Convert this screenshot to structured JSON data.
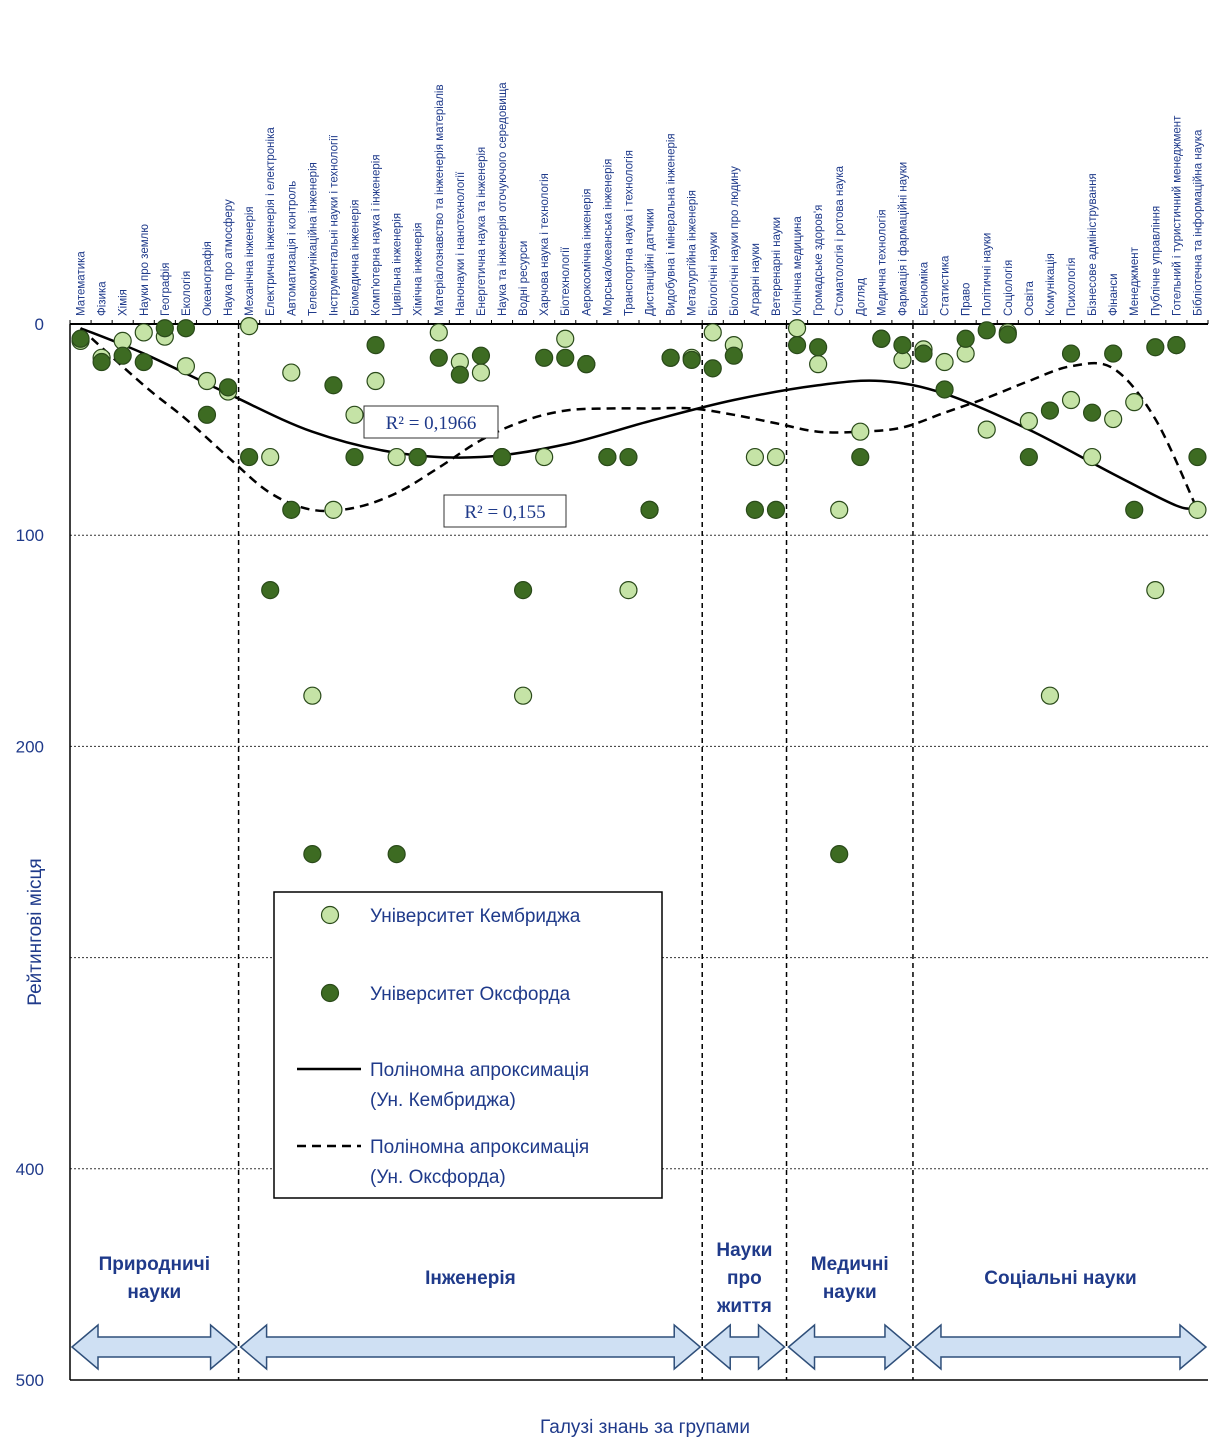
{
  "chart_data": {
    "type": "scatter",
    "title": "",
    "xlabel": "Галузі знань за групами",
    "ylabel": "Рейтингові місця",
    "y_axis_reversed": true,
    "ylim": [
      0,
      500
    ],
    "yticks": [
      0,
      100,
      200,
      300,
      400,
      500
    ],
    "ytick_labels": [
      "0",
      "100",
      "200",
      "",
      "400",
      "500"
    ],
    "grid": "horizontal dotted",
    "categories": [
      "Математика",
      "Фізика",
      "Хімія",
      "Науки про землю",
      "Географія",
      "Екологія",
      "Океанографія",
      "Наука про атмосферу",
      "Механічна інженерія",
      "Електрична інженерія і електроніка",
      "Автоматизація і контроль",
      "Телекомунікаційна інженерія",
      "Інструментальні науки і технології",
      "Біомедична інженерія",
      "Комп'ютерна наука і інженерія",
      "Цивільна інженерія",
      "Хімічна інженерія",
      "Матеріалознавство та інженерія матеріалів",
      "Нанонауки і нанотехнології",
      "Енергетична наука та інженерія",
      "Наука та інженерія оточуючого середовища",
      "Водні ресурси",
      "Харчова наука і технологія",
      "Біотехнології",
      "Аерокосмічна інженерія",
      "Морська/океанська інженерія",
      "Транспортна наука і технологія",
      "Дистанційні датчики",
      "Видобувна і мінеральна інженерія",
      "Металургійна інженерія",
      "Біологічні науки",
      "Біологічні науки про людину",
      "Аграрні науки",
      "Ветеренарні науки",
      "Клінічна медицина",
      "Громадське здоров'я",
      "Стоматологія і ротова наука",
      "Догляд",
      "Медична технологія",
      "Фармація і фармаційні науки",
      "Економіка",
      "Статистика",
      "Право",
      "Політичні науки",
      "Соціологія",
      "Освіта",
      "Комунікація",
      "Психологія",
      "Бізнесове адміністрування",
      "Фінанси",
      "Менеджмент",
      "Публічне управління",
      "Готельний і туристичний менеджмент",
      "Бібліотечна та інформаційна наука"
    ],
    "series": [
      {
        "name": "Університет Кембриджа",
        "color": "#c5e3a6",
        "values": [
          8,
          16,
          8,
          4,
          6,
          20,
          27,
          32,
          1,
          63,
          23,
          176,
          88,
          43,
          27,
          63,
          63,
          4,
          18,
          23,
          63,
          176,
          63,
          7,
          19,
          63,
          126,
          88,
          16,
          16,
          4,
          10,
          63,
          63,
          2,
          19,
          88,
          51,
          7,
          17,
          12,
          18,
          14,
          50,
          4,
          46,
          176,
          36,
          63,
          45,
          37,
          126,
          10,
          88
        ]
      },
      {
        "name": "Університет Оксфорда",
        "color": "#3d6b22",
        "values": [
          7,
          18,
          15,
          18,
          2,
          2,
          43,
          30,
          63,
          126,
          88,
          251,
          29,
          63,
          10,
          251,
          63,
          16,
          24,
          15,
          63,
          126,
          16,
          16,
          19,
          63,
          63,
          88,
          16,
          17,
          21,
          15,
          88,
          88,
          10,
          11,
          251,
          63,
          7,
          10,
          14,
          31,
          7,
          3,
          5,
          63,
          41,
          14,
          42,
          14,
          88,
          11,
          10,
          63
        ]
      }
    ],
    "trendlines": [
      {
        "name": "Поліномна апроксимація (Ун. Кембриджа)",
        "style": "solid",
        "r2": "R² = 0,1966",
        "points": [
          [
            1,
            2
          ],
          [
            4,
            14
          ],
          [
            8,
            33
          ],
          [
            12,
            51
          ],
          [
            16,
            61
          ],
          [
            20,
            63
          ],
          [
            24,
            57
          ],
          [
            28,
            46
          ],
          [
            32,
            36
          ],
          [
            36,
            29
          ],
          [
            39,
            27
          ],
          [
            42,
            33
          ],
          [
            46,
            50
          ],
          [
            50,
            71
          ],
          [
            53,
            86
          ],
          [
            54,
            87
          ]
        ]
      },
      {
        "name": "Поліномна апроксимація (Ун. Оксфорда)",
        "style": "dashed",
        "r2": "R² = 0,155",
        "points": [
          [
            1,
            2
          ],
          [
            4,
            29
          ],
          [
            6,
            45
          ],
          [
            8,
            63
          ],
          [
            10,
            80
          ],
          [
            12,
            88
          ],
          [
            14,
            87
          ],
          [
            16,
            80
          ],
          [
            18,
            68
          ],
          [
            20,
            55
          ],
          [
            22,
            46
          ],
          [
            24,
            41
          ],
          [
            26,
            40
          ],
          [
            28,
            40
          ],
          [
            30,
            40
          ],
          [
            32,
            43
          ],
          [
            34,
            47
          ],
          [
            36,
            51
          ],
          [
            38,
            51
          ],
          [
            40,
            49
          ],
          [
            42,
            42
          ],
          [
            44,
            35
          ],
          [
            46,
            27
          ],
          [
            48,
            20
          ],
          [
            50,
            21
          ],
          [
            52,
            45
          ],
          [
            54,
            88
          ]
        ]
      }
    ],
    "groups": [
      {
        "label_lines": [
          "Природничі",
          "науки"
        ],
        "from": 1,
        "to": 8
      },
      {
        "label_lines": [
          "Інженерія"
        ],
        "from": 9,
        "to": 30
      },
      {
        "label_lines": [
          "Науки",
          "про",
          "життя"
        ],
        "from": 31,
        "to": 34
      },
      {
        "label_lines": [
          "Медичні",
          "науки"
        ],
        "from": 35,
        "to": 40
      },
      {
        "label_lines": [
          "Соціальні науки"
        ],
        "from": 41,
        "to": 54
      }
    ],
    "legend": {
      "placement": "lower-left",
      "entries": [
        {
          "kind": "marker",
          "color": "#c5e3a6",
          "lines": [
            "Університет Кембриджа"
          ]
        },
        {
          "kind": "marker",
          "color": "#3d6b22",
          "lines": [
            "Університет Оксфорда"
          ]
        },
        {
          "kind": "solid",
          "lines": [
            "Поліномна апроксимація",
            "(Ун. Кембриджа)"
          ]
        },
        {
          "kind": "dashed",
          "lines": [
            "Поліномна апроксимація",
            "(Ун. Оксфорда)"
          ]
        }
      ]
    }
  }
}
